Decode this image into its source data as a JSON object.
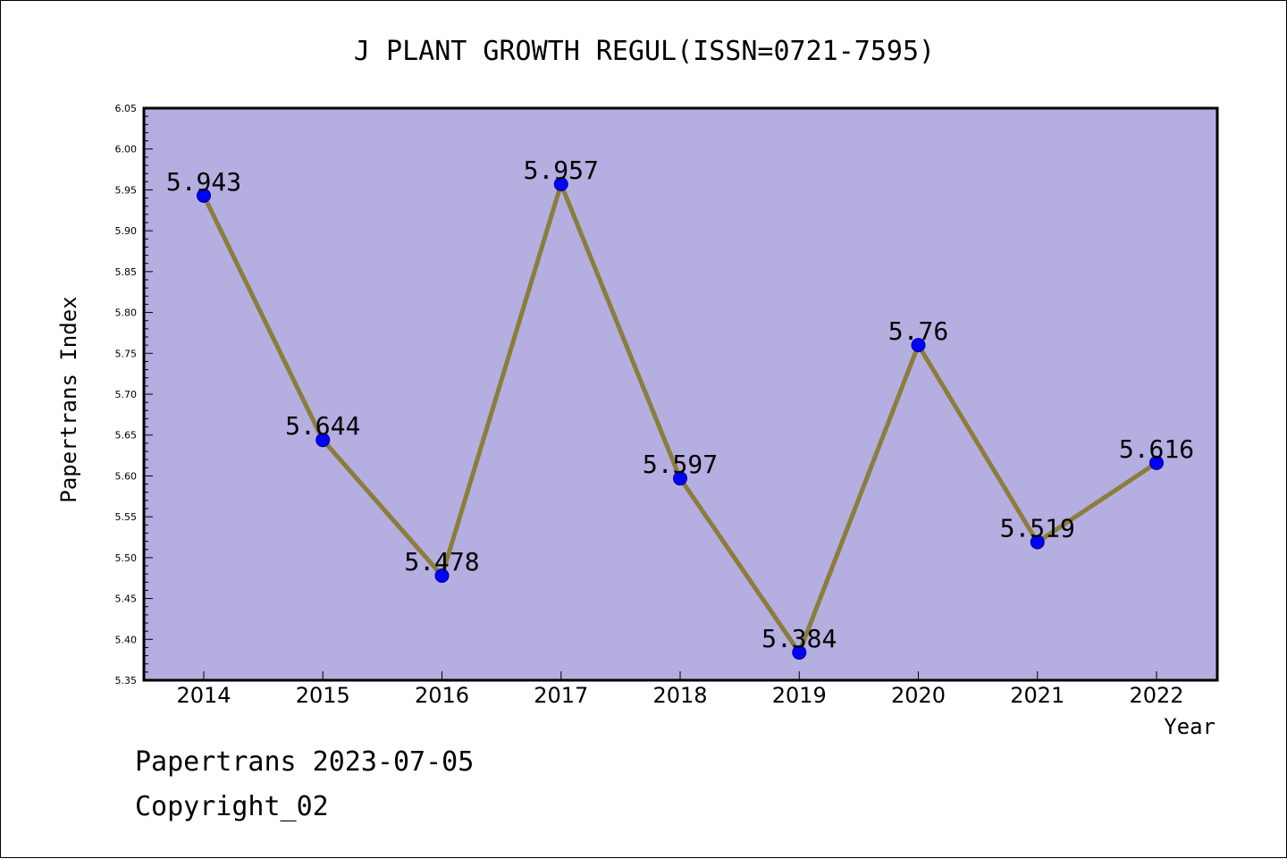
{
  "chart_data": {
    "type": "line",
    "title": "J PLANT GROWTH REGUL(ISSN=0721-7595)",
    "xlabel": "Year",
    "ylabel": "Papertrans Index",
    "categories": [
      "2014",
      "2015",
      "2016",
      "2017",
      "2018",
      "2019",
      "2020",
      "2021",
      "2022"
    ],
    "values": [
      5.943,
      5.644,
      5.478,
      5.957,
      5.597,
      5.384,
      5.76,
      5.519,
      5.616
    ],
    "data_labels": [
      "5.943",
      "5.644",
      "5.478",
      "5.957",
      "5.597",
      "5.384",
      "5.76",
      "5.519",
      "5.616"
    ],
    "ylim": [
      5.35,
      6.05
    ],
    "yticks": [
      "5.35",
      "5.40",
      "5.45",
      "5.50",
      "5.55",
      "5.60",
      "5.65",
      "5.70",
      "5.75",
      "5.80",
      "5.85",
      "5.90",
      "5.95",
      "6.00",
      "6.05"
    ],
    "grid": false,
    "colors": {
      "plot_background": "#b5aee1",
      "line": "#8b7d3a",
      "marker": "#0000ff",
      "marker_edge": "#00008b"
    }
  },
  "footer": {
    "line1": "Papertrans 2023-07-05",
    "line2": "Copyright_02"
  }
}
